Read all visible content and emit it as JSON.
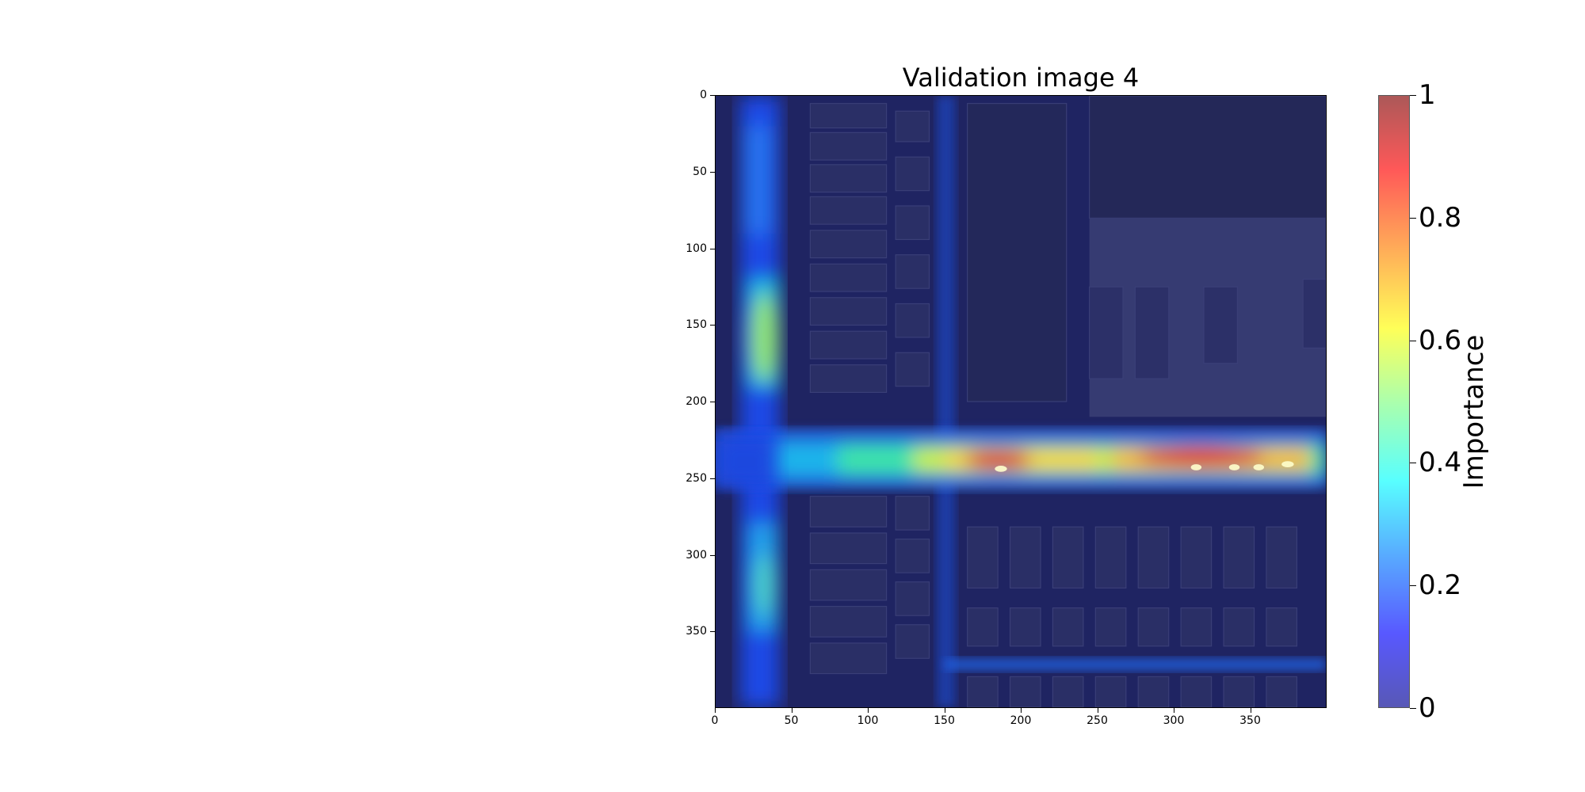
{
  "figure": {
    "title": "Validation image 4",
    "xaxis": {
      "ticks": [
        "0",
        "50",
        "100",
        "150",
        "200",
        "250",
        "300",
        "350"
      ],
      "range": [
        0,
        400
      ]
    },
    "yaxis": {
      "ticks": [
        "0",
        "50",
        "100",
        "150",
        "200",
        "250",
        "300",
        "350"
      ],
      "range": [
        0,
        400
      ]
    },
    "colorbar": {
      "label": "Importance",
      "ticks": [
        "0",
        "0.2",
        "0.4",
        "0.6",
        "0.8",
        "1"
      ],
      "colormap": "jet",
      "range": [
        0,
        1
      ]
    },
    "image_description": "Aerial photo of a residential street intersection overlaid with a jet-colormap importance heatmap; highest importance along the horizontal street near parked cars."
  }
}
